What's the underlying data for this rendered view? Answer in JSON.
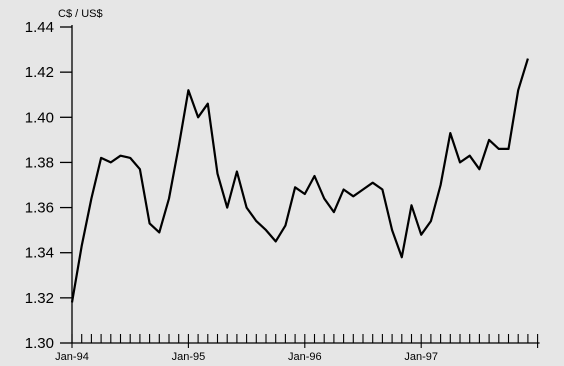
{
  "chart_data": {
    "type": "line",
    "title": "",
    "unit_label": "C$ / US$",
    "ylim": [
      1.3,
      1.44
    ],
    "y_ticks": [
      "1.30",
      "1.32",
      "1.34",
      "1.36",
      "1.38",
      "1.40",
      "1.42",
      "1.44"
    ],
    "x_tick_labels": [
      "Jan-94",
      "Jan-95",
      "Jan-96",
      "Jan-97"
    ],
    "x_start": "Jan-94",
    "x_end": "Jan-98",
    "grid": false,
    "series": [
      {
        "values": [
          1.318,
          1.343,
          1.364,
          1.382,
          1.38,
          1.383,
          1.382,
          1.377,
          1.353,
          1.349,
          1.364,
          1.387,
          1.412,
          1.4,
          1.406,
          1.375,
          1.36,
          1.376,
          1.36,
          1.354,
          1.35,
          1.345,
          1.352,
          1.369,
          1.366,
          1.374,
          1.364,
          1.358,
          1.368,
          1.365,
          1.368,
          1.371,
          1.368,
          1.35,
          1.338,
          1.361,
          1.348,
          1.354,
          1.37,
          1.393,
          1.38,
          1.383,
          1.377,
          1.39,
          1.386,
          1.386,
          1.412,
          1.426
        ],
        "color": "#000000"
      }
    ]
  }
}
